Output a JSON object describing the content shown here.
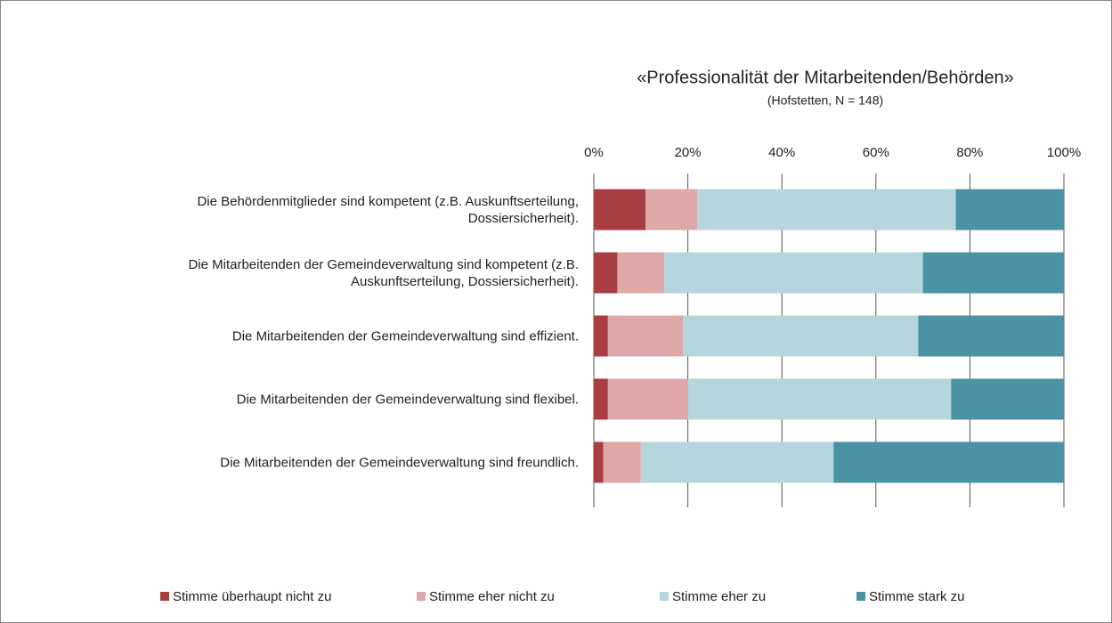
{
  "chart_data": {
    "type": "stacked-barh",
    "title": "«Professionalität der Mitarbeitenden/Behörden»",
    "subtitle": "(Hofstetten, N = 148)",
    "categories": [
      "Die Behördenmitglieder sind kompetent (z.B. Auskunftserteilung, Dossiersicherheit).",
      "Die Mitarbeitenden der Gemeindeverwaltung sind kompetent (z.B. Auskunftserteilung, Dossiersicherheit).",
      "Die Mitarbeitenden der Gemeindeverwaltung sind effizient.",
      "Die Mitarbeitenden der Gemeindeverwaltung sind flexibel.",
      "Die Mitarbeitenden der Gemeindeverwaltung sind freundlich."
    ],
    "series": [
      {
        "name": "Stimme überhaupt nicht zu",
        "color": "#a83e42",
        "values": [
          11,
          5,
          3,
          3,
          2
        ]
      },
      {
        "name": "Stimme eher nicht zu",
        "color": "#dfa8a8",
        "values": [
          11,
          10,
          16,
          17,
          8
        ]
      },
      {
        "name": "Stimme eher zu",
        "color": "#b5d6dc",
        "values": [
          55,
          55,
          50,
          56,
          41
        ]
      },
      {
        "name": "Stimme stark zu",
        "color": "#4a93a5",
        "values": [
          23,
          30,
          31,
          24,
          49
        ]
      }
    ],
    "xlim": [
      0,
      100
    ],
    "xticks": [
      {
        "value": 0,
        "label": "0%"
      },
      {
        "value": 20,
        "label": "20%"
      },
      {
        "value": 40,
        "label": "40%"
      },
      {
        "value": 60,
        "label": "60%"
      },
      {
        "value": 80,
        "label": "80%"
      },
      {
        "value": 100,
        "label": "100%"
      }
    ],
    "grid": true,
    "legend": "bottom"
  }
}
